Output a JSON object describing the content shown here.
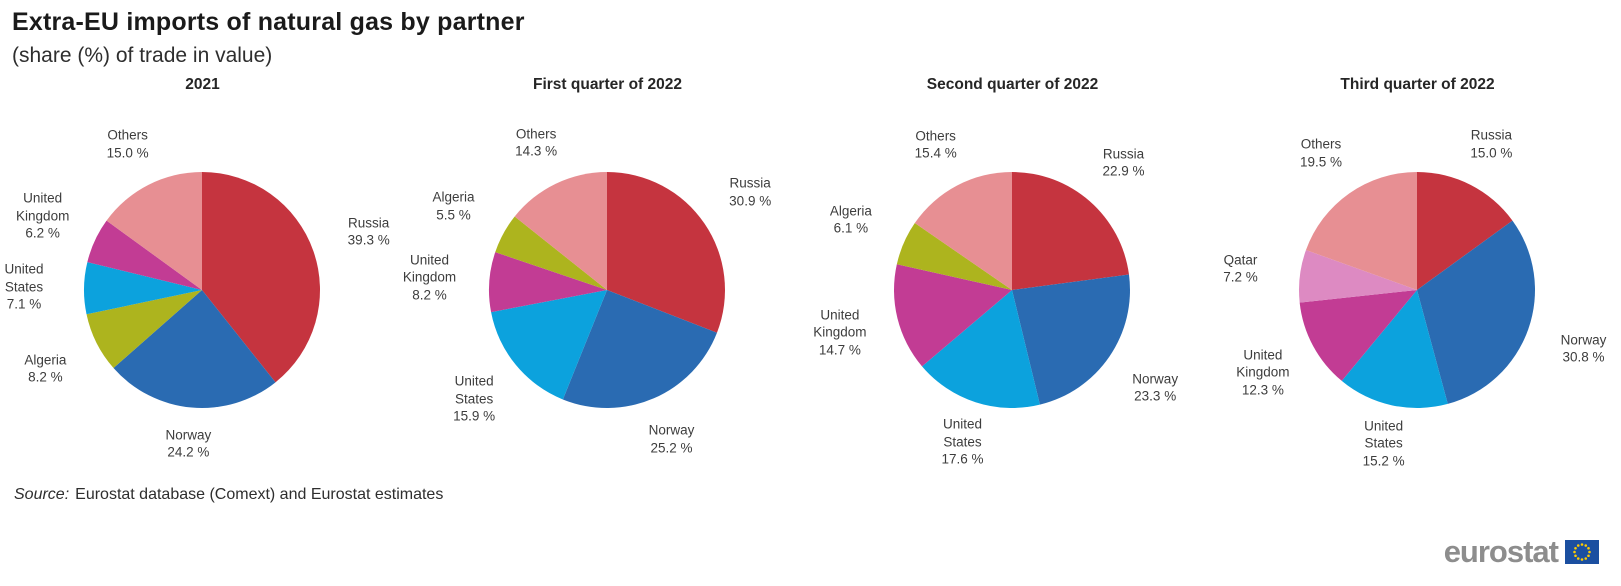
{
  "page": {
    "title": "Extra-EU imports of natural gas by partner",
    "subtitle": "(share (%) of trade in value)",
    "source_prefix": "Source:",
    "source_text": "Eurostat database (Comext) and Eurostat estimates",
    "logo_text": "eurostat"
  },
  "colors": {
    "Russia": "#C5343F",
    "Norway": "#2A6BB2",
    "United States": "#0CA2DD",
    "United Kingdom": "#C23C94",
    "Algeria": "#ADB41E",
    "Qatar": "#DD8AC2",
    "Others": "#E78F93",
    "eu_flag_blue": "#1B4FA0",
    "eu_star_yellow": "#FFCC00",
    "logo_gray": "#8D8D8D"
  },
  "chart_data": [
    {
      "type": "pie",
      "title": "2021",
      "start_angle_deg": -90,
      "direction": "clockwise",
      "slices": [
        {
          "label": "Russia",
          "value": 39.3,
          "display": "39.3 %"
        },
        {
          "label": "Norway",
          "value": 24.2,
          "display": "24.2 %"
        },
        {
          "label": "Algeria",
          "value": 8.2,
          "display": "8.2 %"
        },
        {
          "label": "United States",
          "value": 7.1,
          "display": "7.1 %"
        },
        {
          "label": "United Kingdom",
          "value": 6.2,
          "display": "6.2 %"
        },
        {
          "label": "Others",
          "value": 15.0,
          "display": "15.0 %"
        }
      ]
    },
    {
      "type": "pie",
      "title": "First quarter of 2022",
      "start_angle_deg": -90,
      "direction": "clockwise",
      "slices": [
        {
          "label": "Russia",
          "value": 30.9,
          "display": "30.9 %"
        },
        {
          "label": "Norway",
          "value": 25.2,
          "display": "25.2 %"
        },
        {
          "label": "United States",
          "value": 15.9,
          "display": "15.9 %"
        },
        {
          "label": "United Kingdom",
          "value": 8.2,
          "display": "8.2 %"
        },
        {
          "label": "Algeria",
          "value": 5.5,
          "display": "5.5 %"
        },
        {
          "label": "Others",
          "value": 14.3,
          "display": "14.3 %"
        }
      ]
    },
    {
      "type": "pie",
      "title": "Second quarter of 2022",
      "start_angle_deg": -90,
      "direction": "clockwise",
      "slices": [
        {
          "label": "Russia",
          "value": 22.9,
          "display": "22.9 %"
        },
        {
          "label": "Norway",
          "value": 23.3,
          "display": "23.3 %"
        },
        {
          "label": "United States",
          "value": 17.6,
          "display": "17.6 %"
        },
        {
          "label": "United Kingdom",
          "value": 14.7,
          "display": "14.7 %"
        },
        {
          "label": "Algeria",
          "value": 6.1,
          "display": "6.1 %"
        },
        {
          "label": "Others",
          "value": 15.4,
          "display": "15.4 %"
        }
      ]
    },
    {
      "type": "pie",
      "title": "Third quarter of 2022",
      "start_angle_deg": -90,
      "direction": "clockwise",
      "slices": [
        {
          "label": "Russia",
          "value": 15.0,
          "display": "15.0 %"
        },
        {
          "label": "Norway",
          "value": 30.8,
          "display": "30.8 %"
        },
        {
          "label": "United States",
          "value": 15.2,
          "display": "15.2 %"
        },
        {
          "label": "United Kingdom",
          "value": 12.3,
          "display": "12.3 %"
        },
        {
          "label": "Qatar",
          "value": 7.2,
          "display": "7.2 %"
        },
        {
          "label": "Others",
          "value": 19.5,
          "display": "19.5 %"
        }
      ]
    }
  ]
}
